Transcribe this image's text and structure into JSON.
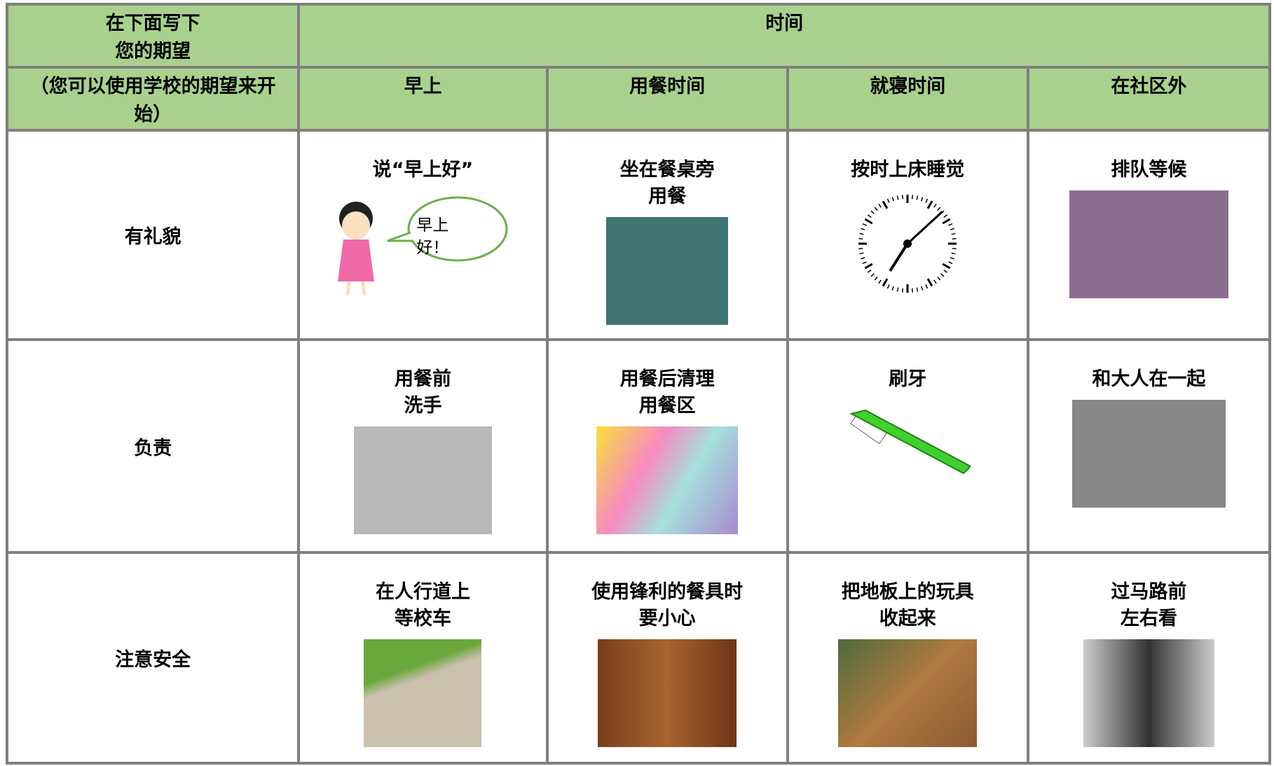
{
  "header": {
    "title_lines": [
      "在下面写下",
      "您的期望"
    ],
    "time": "时间",
    "hint": "（您可以使用学校的期望来开始）"
  },
  "columns": [
    "早上",
    "用餐时间",
    "就寝时间",
    "在社区外"
  ],
  "rows": [
    {
      "label": "有礼貌",
      "cells": [
        {
          "lines": [
            "说“早上好”"
          ],
          "bubble": [
            "早上",
            "好！"
          ]
        },
        {
          "lines": [
            "坐在餐桌旁",
            "用餐"
          ]
        },
        {
          "lines": [
            "按时上床睡觉"
          ]
        },
        {
          "lines": [
            "排队等候"
          ]
        }
      ]
    },
    {
      "label": "负责",
      "cells": [
        {
          "lines": [
            "用餐前",
            "洗手"
          ]
        },
        {
          "lines": [
            "用餐后清理",
            "用餐区"
          ]
        },
        {
          "lines": [
            "刷牙"
          ]
        },
        {
          "lines": [
            "和大人在一起"
          ]
        }
      ]
    },
    {
      "label": "注意安全",
      "cells": [
        {
          "lines": [
            "在人行道上",
            "等校车"
          ]
        },
        {
          "lines": [
            "使用锋利的餐具时",
            "要小心"
          ]
        },
        {
          "lines": [
            "把地板上的玩具",
            "收起来"
          ]
        },
        {
          "lines": [
            "过马路前",
            "左右看"
          ]
        }
      ]
    }
  ]
}
